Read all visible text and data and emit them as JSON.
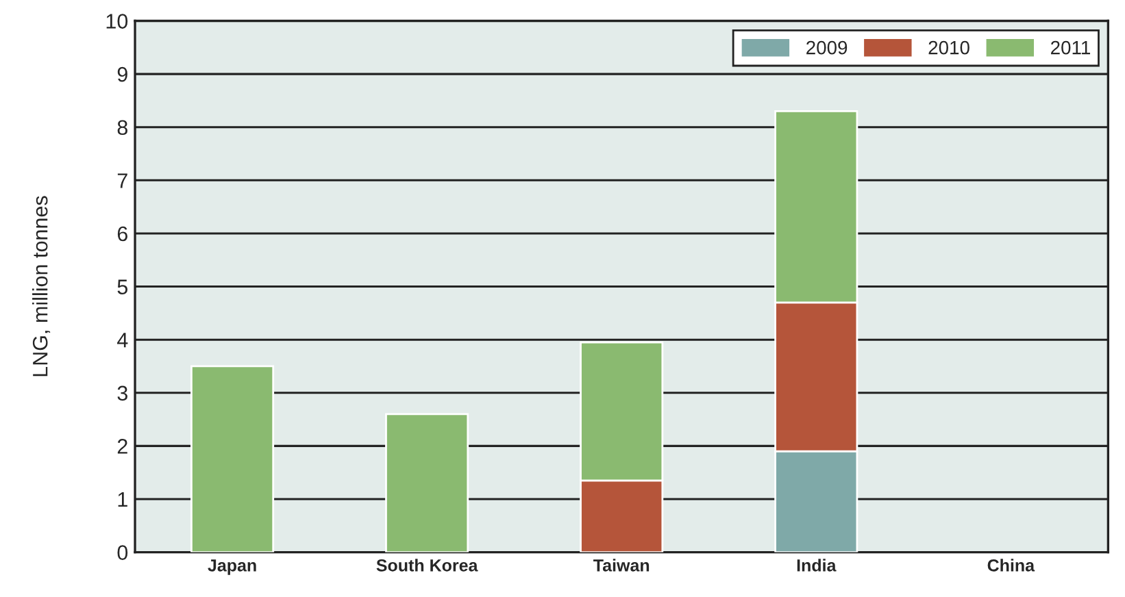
{
  "chart_data": {
    "type": "bar",
    "stacked": true,
    "ylabel": "LNG, million tonnes",
    "categories": [
      "Japan",
      "South Korea",
      "Taiwan",
      "India",
      "China"
    ],
    "series": [
      {
        "name": "2009",
        "color": "#7fa9a8",
        "values": [
          null,
          null,
          null,
          1.9,
          null
        ]
      },
      {
        "name": "2010",
        "color": "#b5553a",
        "values": [
          null,
          null,
          1.35,
          2.8,
          null
        ]
      },
      {
        "name": "2011",
        "color": "#8aba70",
        "values": [
          3.5,
          2.6,
          2.6,
          3.6,
          null
        ]
      }
    ],
    "ylim": [
      0,
      10
    ],
    "yticks": [
      0,
      1,
      2,
      3,
      4,
      5,
      6,
      7,
      8,
      9,
      10
    ],
    "grid": "y",
    "legend": "top right"
  }
}
